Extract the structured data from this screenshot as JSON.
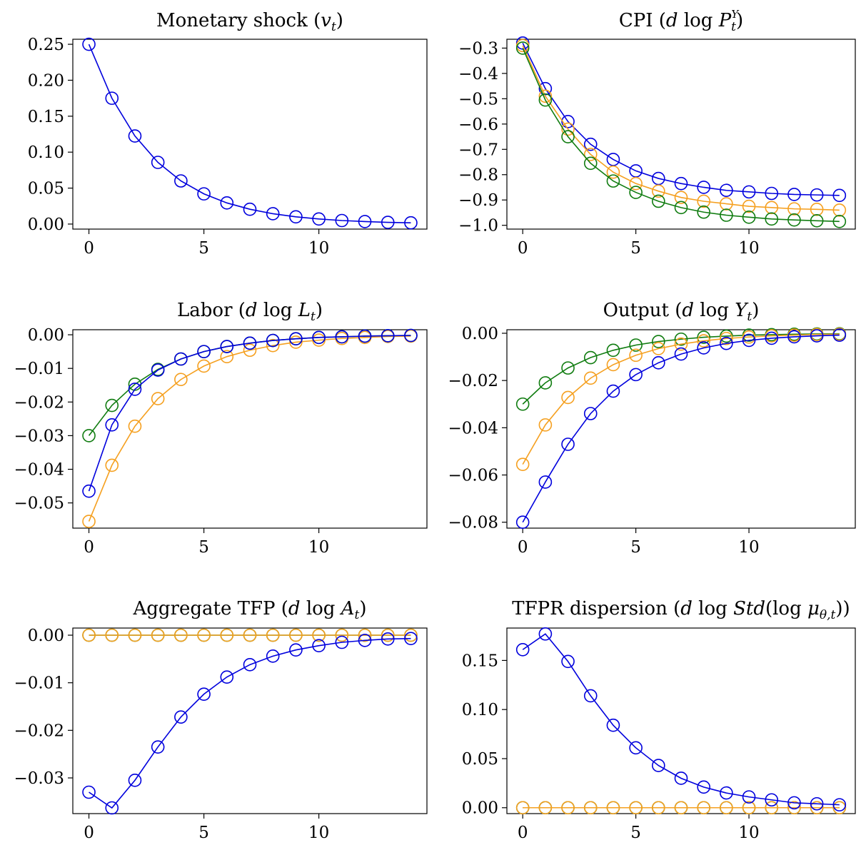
{
  "colors": {
    "blue": "#0000dd",
    "orange": "#f5a020",
    "green": "#107c10"
  },
  "chart_data": [
    {
      "type": "line",
      "title": "Monetary shock (v_t)",
      "title_parts": {
        "pre": "Monetary shock (",
        "var": "v",
        "sub": "t",
        "post": ")"
      },
      "x": [
        0,
        1,
        2,
        3,
        4,
        5,
        6,
        7,
        8,
        9,
        10,
        11,
        12,
        13,
        14
      ],
      "xticks": [
        "0",
        "5",
        "10"
      ],
      "xlim": [
        -0.7,
        14.7
      ],
      "ylim": [
        -0.007,
        0.257
      ],
      "yticks": [
        "0.00",
        "0.05",
        "0.10",
        "0.15",
        "0.20",
        "0.25"
      ],
      "series": [
        {
          "color": "blue",
          "values": [
            0.25,
            0.175,
            0.1225,
            0.0858,
            0.06,
            0.042,
            0.0294,
            0.0206,
            0.0144,
            0.0101,
            0.0071,
            0.0049,
            0.0035,
            0.0024,
            0.0017
          ]
        }
      ]
    },
    {
      "type": "line",
      "title": "CPI (d log P_t^Y)",
      "title_parts": {
        "pre": "CPI (",
        "d": "d",
        "log": "log",
        "var": "P",
        "sub": "t",
        "sup": "Y",
        "post": ")"
      },
      "x": [
        0,
        1,
        2,
        3,
        4,
        5,
        6,
        7,
        8,
        9,
        10,
        11,
        12,
        13,
        14
      ],
      "xticks": [
        "0",
        "5",
        "10"
      ],
      "xlim": [
        -0.7,
        14.7
      ],
      "ylim": [
        -1.015,
        -0.265
      ],
      "yticks": [
        "−0.3",
        "−0.4",
        "−0.5",
        "−0.6",
        "−0.7",
        "−0.8",
        "−0.9",
        "−1.0"
      ],
      "series": [
        {
          "color": "blue",
          "values": [
            -0.28,
            -0.46,
            -0.59,
            -0.68,
            -0.74,
            -0.785,
            -0.815,
            -0.835,
            -0.85,
            -0.862,
            -0.868,
            -0.874,
            -0.878,
            -0.88,
            -0.882
          ]
        },
        {
          "color": "orange",
          "values": [
            -0.29,
            -0.49,
            -0.62,
            -0.72,
            -0.79,
            -0.835,
            -0.865,
            -0.89,
            -0.905,
            -0.915,
            -0.925,
            -0.93,
            -0.935,
            -0.937,
            -0.94
          ]
        },
        {
          "color": "green",
          "values": [
            -0.3,
            -0.505,
            -0.65,
            -0.755,
            -0.825,
            -0.87,
            -0.905,
            -0.93,
            -0.948,
            -0.96,
            -0.968,
            -0.975,
            -0.979,
            -0.982,
            -0.985
          ]
        }
      ]
    },
    {
      "type": "line",
      "title": "Labor (d log L_t)",
      "title_parts": {
        "pre": "Labor (",
        "d": "d",
        "log": "log",
        "var": "L",
        "sub": "t",
        "post": ")"
      },
      "x": [
        0,
        1,
        2,
        3,
        4,
        5,
        6,
        7,
        8,
        9,
        10,
        11,
        12,
        13,
        14
      ],
      "xticks": [
        "0",
        "5",
        "10"
      ],
      "xlim": [
        -0.7,
        14.7
      ],
      "ylim": [
        -0.0575,
        0.0015
      ],
      "yticks": [
        "0.00",
        "−0.01",
        "−0.02",
        "−0.03",
        "−0.04",
        "−0.05"
      ],
      "series": [
        {
          "color": "orange",
          "values": [
            -0.0555,
            -0.0388,
            -0.0272,
            -0.019,
            -0.0133,
            -0.0093,
            -0.0065,
            -0.0046,
            -0.0032,
            -0.0022,
            -0.0016,
            -0.0011,
            -0.0008,
            -0.0005,
            -0.0004
          ]
        },
        {
          "color": "green",
          "values": [
            -0.03,
            -0.021,
            -0.0147,
            -0.0103,
            -0.0072,
            -0.005,
            -0.0035,
            -0.0025,
            -0.0017,
            -0.0012,
            -0.0008,
            -0.0006,
            -0.0004,
            -0.0003,
            -0.0002
          ]
        },
        {
          "color": "blue",
          "values": [
            -0.0465,
            -0.0268,
            -0.0162,
            -0.0105,
            -0.0072,
            -0.005,
            -0.0035,
            -0.0025,
            -0.0017,
            -0.0012,
            -0.0008,
            -0.0006,
            -0.0004,
            -0.0003,
            -0.0002
          ]
        }
      ]
    },
    {
      "type": "line",
      "title": "Output (d log Y_t)",
      "title_parts": {
        "pre": "Output (",
        "d": "d",
        "log": "log",
        "var": "Y",
        "sub": "t",
        "post": ")"
      },
      "x": [
        0,
        1,
        2,
        3,
        4,
        5,
        6,
        7,
        8,
        9,
        10,
        11,
        12,
        13,
        14
      ],
      "xticks": [
        "0",
        "5",
        "10"
      ],
      "xlim": [
        -0.7,
        14.7
      ],
      "ylim": [
        -0.0825,
        0.0015
      ],
      "yticks": [
        "0.00",
        "−0.02",
        "−0.04",
        "−0.06",
        "−0.08"
      ],
      "series": [
        {
          "color": "green",
          "values": [
            -0.03,
            -0.021,
            -0.0147,
            -0.0103,
            -0.0072,
            -0.005,
            -0.0035,
            -0.0025,
            -0.0017,
            -0.0012,
            -0.0008,
            -0.0006,
            -0.0004,
            -0.0003,
            -0.0002
          ]
        },
        {
          "color": "orange",
          "values": [
            -0.0555,
            -0.0388,
            -0.0272,
            -0.019,
            -0.0133,
            -0.0093,
            -0.0065,
            -0.0046,
            -0.0032,
            -0.0022,
            -0.0016,
            -0.0011,
            -0.0008,
            -0.0005,
            -0.0004
          ]
        },
        {
          "color": "blue",
          "values": [
            -0.08,
            -0.063,
            -0.047,
            -0.034,
            -0.0245,
            -0.0175,
            -0.0125,
            -0.0088,
            -0.0062,
            -0.0043,
            -0.003,
            -0.0021,
            -0.0015,
            -0.0011,
            -0.0008
          ]
        }
      ]
    },
    {
      "type": "line",
      "title": "Aggregate TFP (d log A_t)",
      "title_parts": {
        "pre": "Aggregate TFP (",
        "d": "d",
        "log": "log",
        "var": "A",
        "sub": "t",
        "post": ")"
      },
      "x": [
        0,
        1,
        2,
        3,
        4,
        5,
        6,
        7,
        8,
        9,
        10,
        11,
        12,
        13,
        14
      ],
      "xticks": [
        "0",
        "5",
        "10"
      ],
      "xlim": [
        -0.7,
        14.7
      ],
      "ylim": [
        -0.0375,
        0.0015
      ],
      "yticks": [
        "0.00",
        "−0.01",
        "−0.02",
        "−0.03"
      ],
      "series": [
        {
          "color": "green",
          "values": [
            0,
            0,
            0,
            0,
            0,
            0,
            0,
            0,
            0,
            0,
            0,
            0,
            0,
            0,
            0
          ]
        },
        {
          "color": "orange",
          "values": [
            0,
            0,
            0,
            0,
            0,
            0,
            0,
            0,
            0,
            0,
            0,
            0,
            0,
            0,
            0
          ]
        },
        {
          "color": "blue",
          "values": [
            -0.033,
            -0.0363,
            -0.0305,
            -0.0235,
            -0.0172,
            -0.0124,
            -0.0088,
            -0.0062,
            -0.0044,
            -0.0031,
            -0.0022,
            -0.0015,
            -0.0011,
            -0.0008,
            -0.0007
          ]
        }
      ]
    },
    {
      "type": "line",
      "title": "TFPR dispersion (d log Std(log μ_θ,t))",
      "title_parts": {
        "pre": "TFPR dispersion (",
        "d": "d",
        "log": "log",
        "std": "Std",
        "inner_log": "log",
        "mu": "μ",
        "sub": "θ,t",
        "post": "))"
      },
      "x": [
        0,
        1,
        2,
        3,
        4,
        5,
        6,
        7,
        8,
        9,
        10,
        11,
        12,
        13,
        14
      ],
      "xticks": [
        "0",
        "5",
        "10"
      ],
      "xlim": [
        -0.7,
        14.7
      ],
      "ylim": [
        -0.006,
        0.183
      ],
      "yticks": [
        "0.00",
        "0.05",
        "0.10",
        "0.15"
      ],
      "series": [
        {
          "color": "green",
          "values": [
            0,
            0,
            0,
            0,
            0,
            0,
            0,
            0,
            0,
            0,
            0,
            0,
            0,
            0,
            0
          ]
        },
        {
          "color": "orange",
          "values": [
            0,
            0,
            0,
            0,
            0,
            0,
            0,
            0,
            0,
            0,
            0,
            0,
            0,
            0,
            0
          ]
        },
        {
          "color": "blue",
          "values": [
            0.161,
            0.177,
            0.149,
            0.114,
            0.084,
            0.061,
            0.043,
            0.03,
            0.021,
            0.015,
            0.011,
            0.008,
            0.005,
            0.004,
            0.003
          ]
        }
      ]
    }
  ]
}
